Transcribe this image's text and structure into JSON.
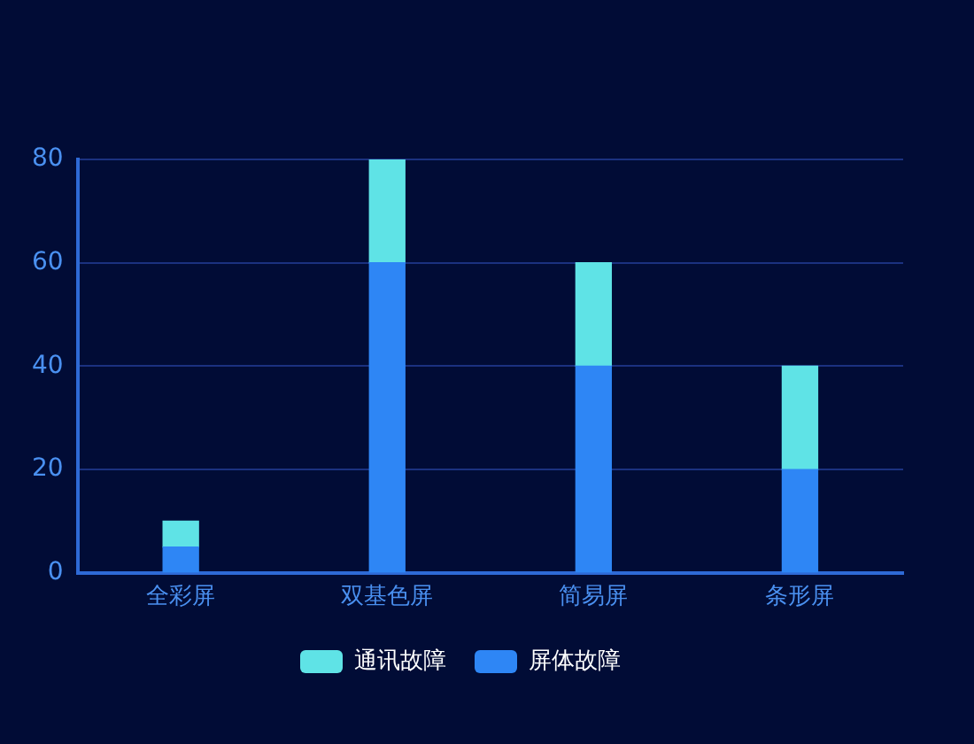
{
  "chart_data": {
    "type": "bar",
    "stacked": true,
    "categories": [
      "全彩屏",
      "双基色屏",
      "简易屏",
      "条形屏"
    ],
    "series": [
      {
        "name": "屏体故障",
        "color": "#2e86f5",
        "values": [
          5,
          60,
          40,
          20
        ]
      },
      {
        "name": "通讯故障",
        "color": "#5fe3e6",
        "values": [
          5,
          20,
          20,
          20
        ]
      }
    ],
    "ylim": [
      0,
      80
    ],
    "yticks": [
      0,
      20,
      40,
      60,
      80
    ],
    "grid": "y",
    "legend": "bottom"
  }
}
